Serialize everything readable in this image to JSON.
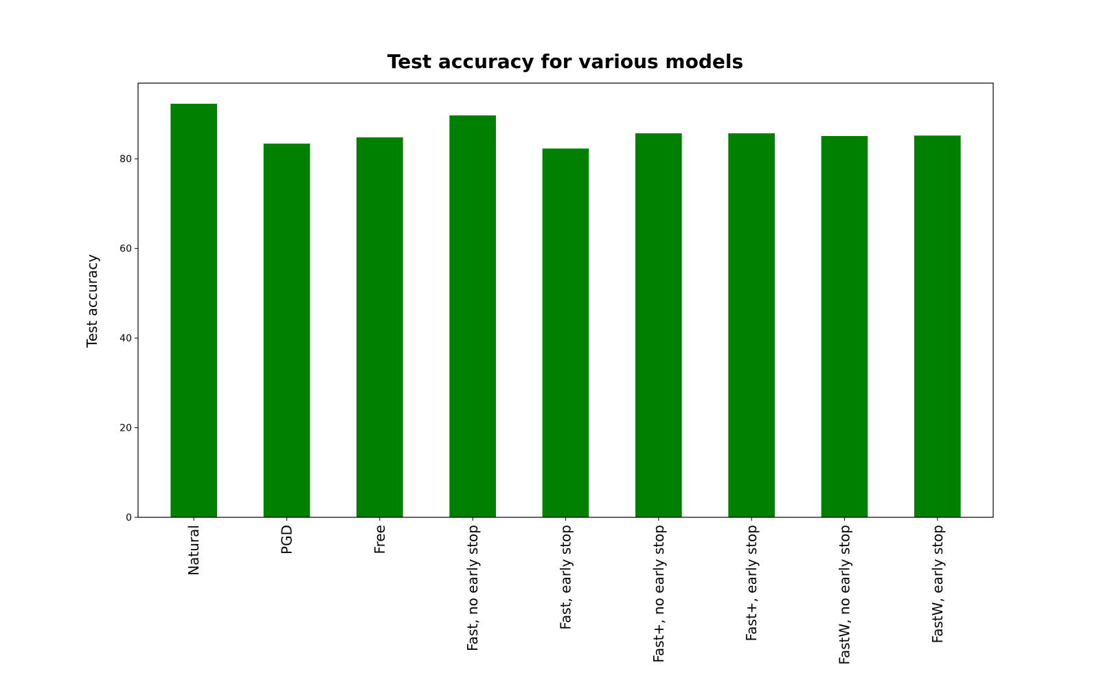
{
  "chart_data": {
    "type": "bar",
    "title": "Test accuracy for various models",
    "ylabel": "Test accuracy",
    "xlabel": "",
    "categories": [
      "Natural",
      "PGD",
      "Free",
      "Fast, no early stop",
      "Fast, early stop",
      "Fast+, no early stop",
      "Fast+, early stop",
      "FastW, no early stop",
      "FastW, early stop"
    ],
    "values": [
      92.3,
      83.4,
      84.8,
      89.7,
      82.3,
      85.7,
      85.7,
      85.1,
      85.2
    ],
    "yticks": [
      "0",
      "20",
      "40",
      "60",
      "80"
    ],
    "ylim": [
      0,
      96.9
    ],
    "bar_color": "#008000",
    "grid": false
  }
}
